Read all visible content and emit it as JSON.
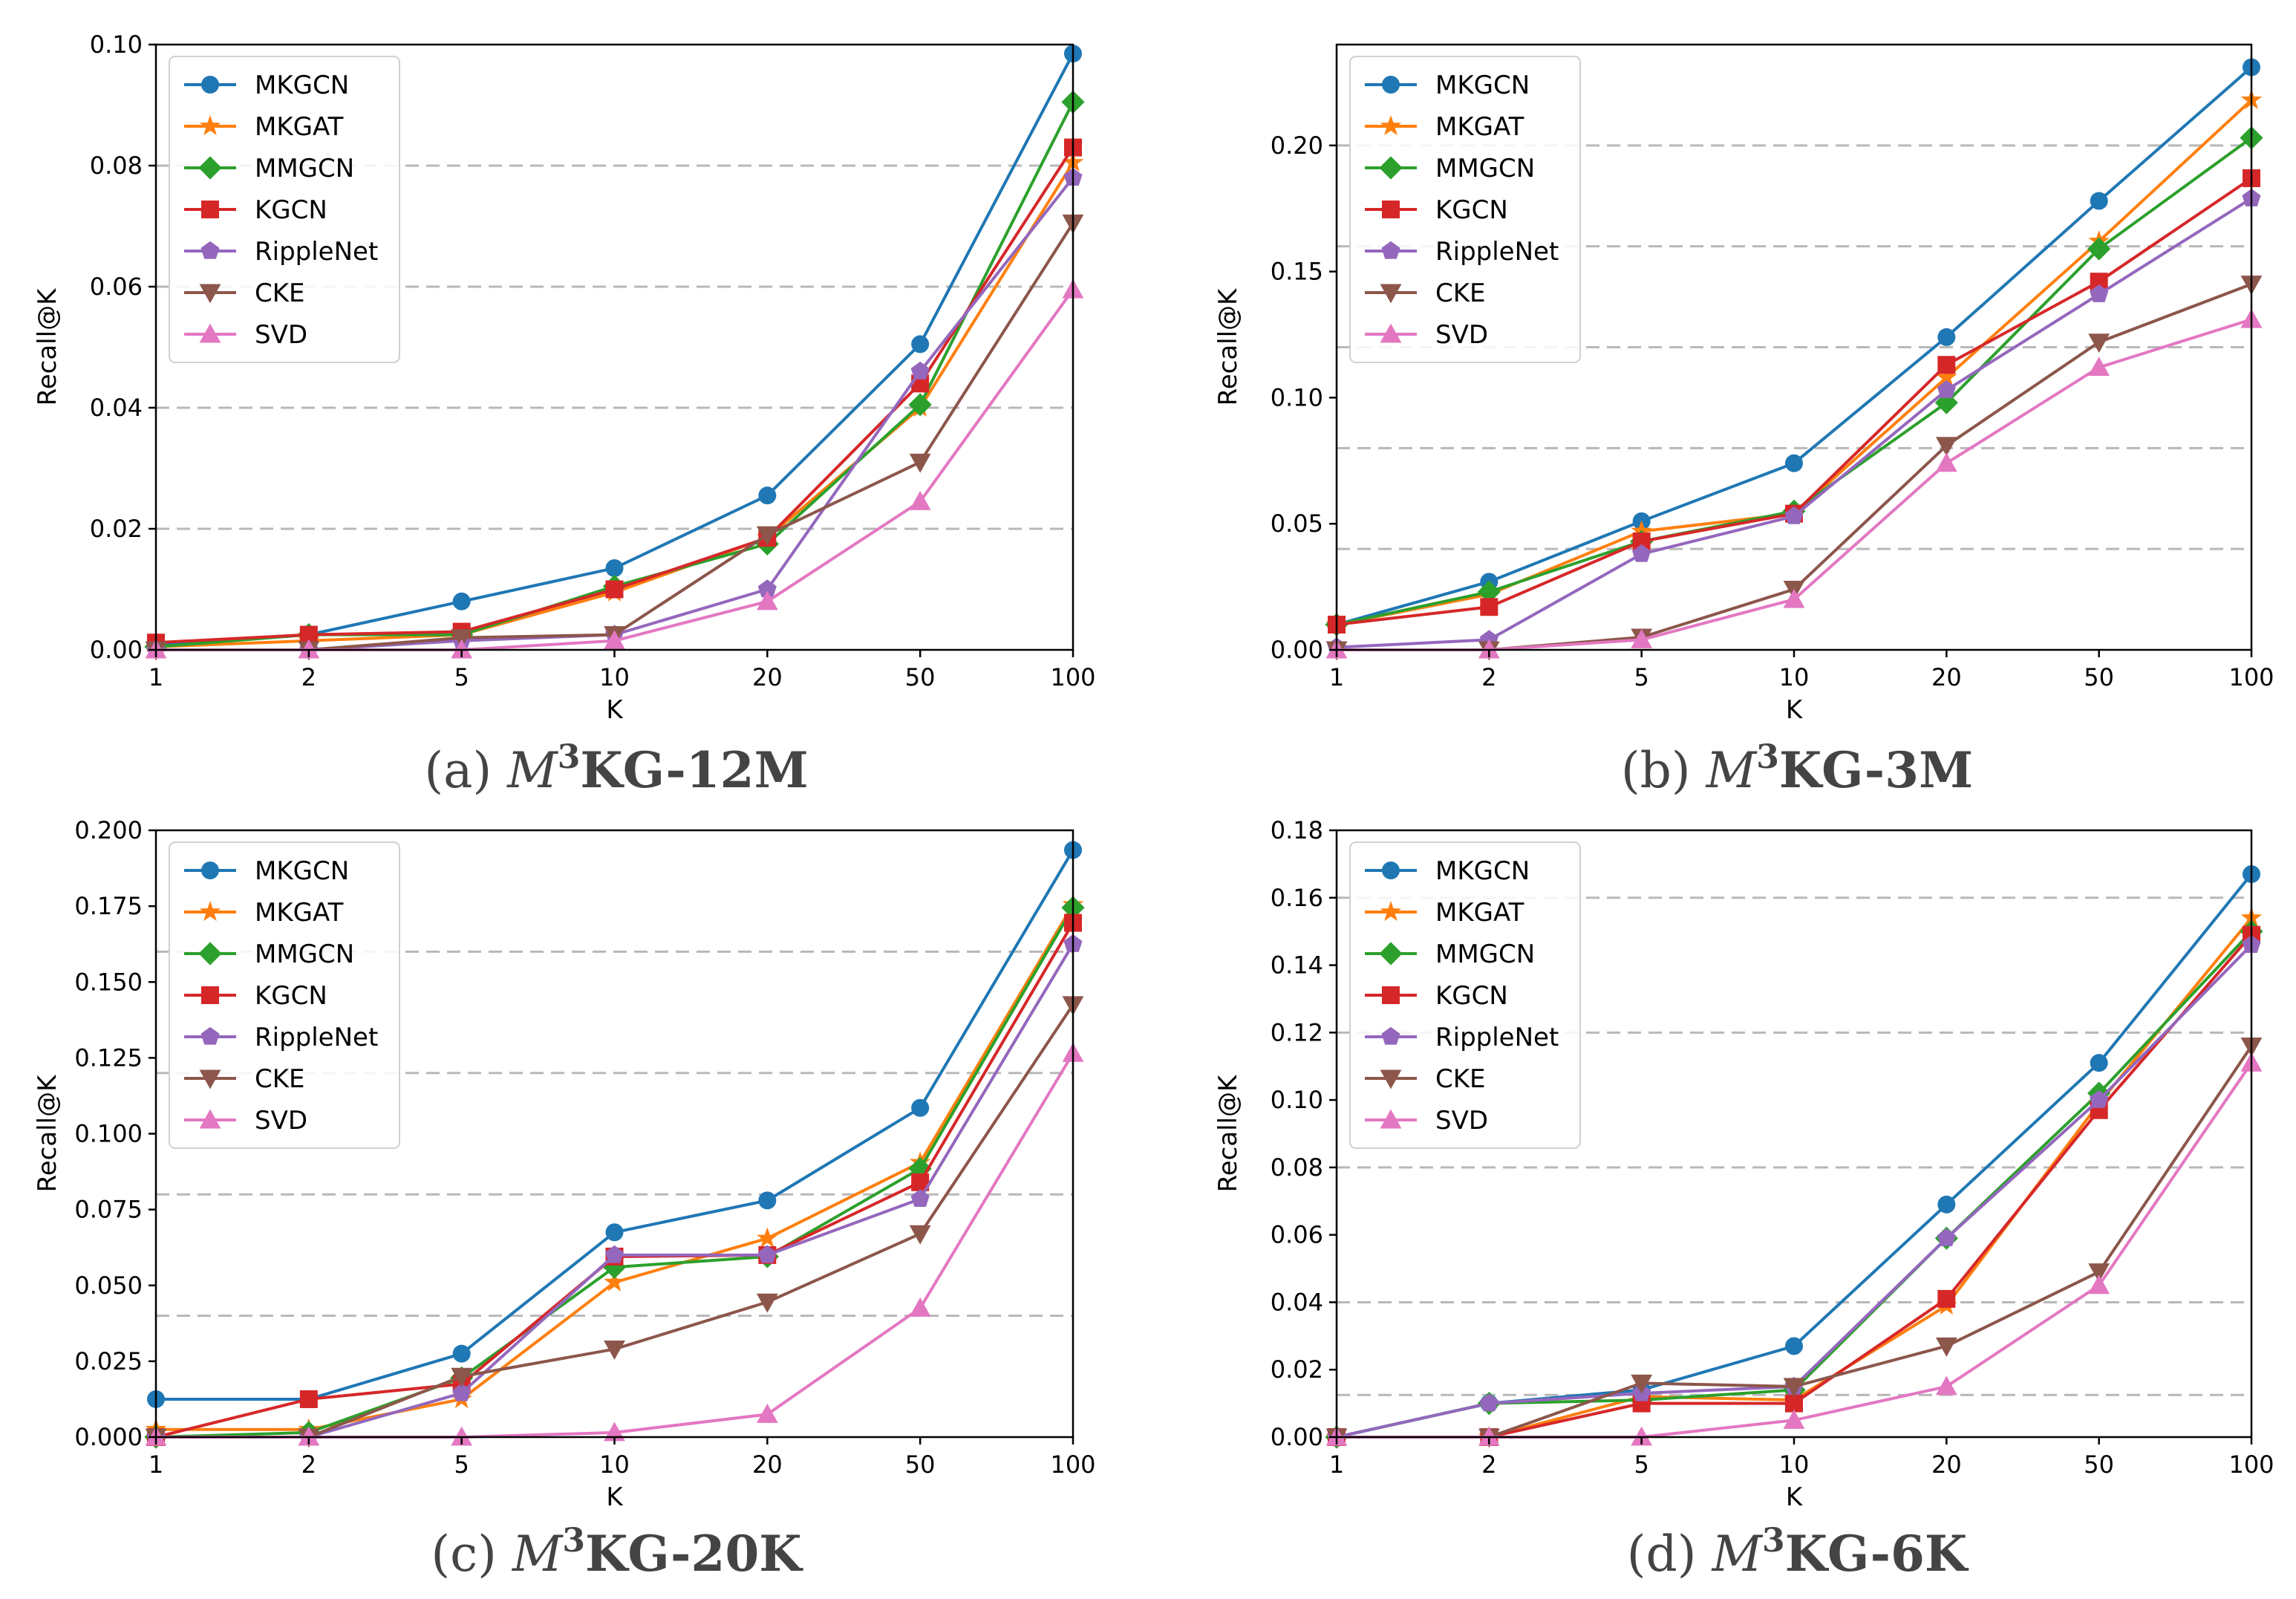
{
  "figure": {
    "colors": {
      "MKGCN": "#1f77b4",
      "MKGAT": "#ff7f0e",
      "MMGCN": "#2ca02c",
      "KGCN": "#d62728",
      "RippleNet": "#9467bd",
      "CKE": "#8c564b",
      "SVD": "#e377c2",
      "grid": "#b8b8b8"
    },
    "markers": {
      "MKGCN": "circle",
      "MKGAT": "star",
      "MMGCN": "diamond",
      "KGCN": "square",
      "RippleNet": "pentagon",
      "CKE": "triangle-down",
      "SVD": "triangle-up"
    }
  },
  "chart_data": [
    {
      "type": "line",
      "panel": "a",
      "caption_prefix": "(a)",
      "caption_math": "M",
      "caption_sup": "3",
      "caption_suffix": "KG-12M",
      "xlabel": "K",
      "ylabel": "Recall@K",
      "categories": [
        "1",
        "2",
        "5",
        "10",
        "20",
        "50",
        "100"
      ],
      "ylim": [
        0,
        0.1
      ],
      "yticks": [
        "0.00",
        "0.02",
        "0.04",
        "0.06",
        "0.08",
        "0.10"
      ],
      "ytick_values": [
        0,
        0.02,
        0.04,
        0.06,
        0.08,
        0.1
      ],
      "grid_values": [
        0.02,
        0.04,
        0.06,
        0.08
      ],
      "series": [
        {
          "name": "MKGCN",
          "values": [
            0.001,
            0.0025,
            0.008,
            0.0135,
            0.0255,
            0.0505,
            0.0985
          ]
        },
        {
          "name": "MKGAT",
          "values": [
            0.0005,
            0.0015,
            0.0025,
            0.0095,
            0.0185,
            0.04,
            0.0805
          ]
        },
        {
          "name": "MMGCN",
          "values": [
            0.0005,
            0.0025,
            0.0025,
            0.0105,
            0.0175,
            0.0405,
            0.0905
          ]
        },
        {
          "name": "KGCN",
          "values": [
            0.0012,
            0.0025,
            0.003,
            0.01,
            0.0185,
            0.044,
            0.083
          ]
        },
        {
          "name": "RippleNet",
          "values": [
            0.0,
            0.0,
            0.0015,
            0.0025,
            0.01,
            0.046,
            0.078
          ]
        },
        {
          "name": "CKE",
          "values": [
            0.0,
            0.0,
            0.002,
            0.0025,
            0.019,
            0.031,
            0.0705
          ]
        },
        {
          "name": "SVD",
          "values": [
            0.0,
            0.0,
            0.0,
            0.0015,
            0.008,
            0.0245,
            0.0595
          ]
        }
      ]
    },
    {
      "type": "line",
      "panel": "b",
      "caption_prefix": "(b)",
      "caption_math": "M",
      "caption_sup": "3",
      "caption_suffix": "KG-3M",
      "xlabel": "K",
      "ylabel": "Recall@K",
      "categories": [
        "1",
        "2",
        "5",
        "10",
        "20",
        "50",
        "100"
      ],
      "ylim": [
        0,
        0.24
      ],
      "yticks": [
        "0.00",
        "0.05",
        "0.10",
        "0.15",
        "0.20"
      ],
      "ytick_values": [
        0,
        0.05,
        0.1,
        0.15,
        0.2
      ],
      "grid_values": [
        0.04,
        0.08,
        0.12,
        0.16,
        0.2
      ],
      "series": [
        {
          "name": "MKGCN",
          "values": [
            0.01,
            0.027,
            0.051,
            0.074,
            0.124,
            0.178,
            0.231
          ]
        },
        {
          "name": "MKGAT",
          "values": [
            0.01,
            0.022,
            0.047,
            0.054,
            0.108,
            0.162,
            0.218
          ]
        },
        {
          "name": "MMGCN",
          "values": [
            0.01,
            0.023,
            0.043,
            0.055,
            0.098,
            0.159,
            0.203
          ]
        },
        {
          "name": "KGCN",
          "values": [
            0.01,
            0.017,
            0.043,
            0.054,
            0.113,
            0.146,
            0.187
          ]
        },
        {
          "name": "RippleNet",
          "values": [
            0.001,
            0.004,
            0.038,
            0.053,
            0.103,
            0.141,
            0.179
          ]
        },
        {
          "name": "CKE",
          "values": [
            0.0,
            0.0,
            0.005,
            0.024,
            0.081,
            0.122,
            0.145
          ]
        },
        {
          "name": "SVD",
          "values": [
            0.0,
            0.0,
            0.004,
            0.02,
            0.074,
            0.112,
            0.131
          ]
        }
      ]
    },
    {
      "type": "line",
      "panel": "c",
      "caption_prefix": "(c)",
      "caption_math": "M",
      "caption_sup": "3",
      "caption_suffix": "KG-20K",
      "xlabel": "K",
      "ylabel": "Recall@K",
      "categories": [
        "1",
        "2",
        "5",
        "10",
        "20",
        "50",
        "100"
      ],
      "ylim": [
        0,
        0.2
      ],
      "yticks": [
        "0.000",
        "0.025",
        "0.050",
        "0.075",
        "0.100",
        "0.125",
        "0.150",
        "0.175",
        "0.200"
      ],
      "ytick_values": [
        0,
        0.025,
        0.05,
        0.075,
        0.1,
        0.125,
        0.15,
        0.175,
        0.2
      ],
      "grid_values": [
        0.04,
        0.08,
        0.12,
        0.16
      ],
      "series": [
        {
          "name": "MKGCN",
          "values": [
            0.0125,
            0.0125,
            0.0275,
            0.0675,
            0.078,
            0.1085,
            0.1935
          ]
        },
        {
          "name": "MKGAT",
          "values": [
            0.0025,
            0.0025,
            0.0125,
            0.051,
            0.0655,
            0.0905,
            0.1755
          ]
        },
        {
          "name": "MMGCN",
          "values": [
            0.0,
            0.0015,
            0.0195,
            0.056,
            0.0595,
            0.0885,
            0.1745
          ]
        },
        {
          "name": "KGCN",
          "values": [
            0.0,
            0.0125,
            0.0175,
            0.0595,
            0.06,
            0.084,
            0.1695
          ]
        },
        {
          "name": "RippleNet",
          "values": [
            0.0,
            0.0,
            0.0145,
            0.06,
            0.06,
            0.0785,
            0.1625
          ]
        },
        {
          "name": "CKE",
          "values": [
            0.0,
            0.0,
            0.02,
            0.029,
            0.0445,
            0.067,
            0.1425
          ]
        },
        {
          "name": "SVD",
          "values": [
            0.0,
            0.0,
            0.0,
            0.0015,
            0.0075,
            0.0425,
            0.1265
          ]
        }
      ]
    },
    {
      "type": "line",
      "panel": "d",
      "caption_prefix": "(d)",
      "caption_math": "M",
      "caption_sup": "3",
      "caption_suffix": "KG-6K",
      "xlabel": "K",
      "ylabel": "Recall@K",
      "categories": [
        "1",
        "2",
        "5",
        "10",
        "20",
        "50",
        "100"
      ],
      "ylim": [
        0,
        0.18
      ],
      "yticks": [
        "0.00",
        "0.02",
        "0.04",
        "0.06",
        "0.08",
        "0.10",
        "0.12",
        "0.14",
        "0.16",
        "0.18"
      ],
      "ytick_values": [
        0,
        0.02,
        0.04,
        0.06,
        0.08,
        0.1,
        0.12,
        0.14,
        0.16,
        0.18
      ],
      "grid_values": [
        0.0125,
        0.04,
        0.08,
        0.12,
        0.16
      ],
      "series": [
        {
          "name": "MKGCN",
          "values": [
            0.0,
            0.01,
            0.014,
            0.027,
            0.069,
            0.111,
            0.167
          ]
        },
        {
          "name": "MKGAT",
          "values": [
            0.0,
            0.0,
            0.012,
            0.011,
            0.039,
            0.099,
            0.154
          ]
        },
        {
          "name": "MMGCN",
          "values": [
            0.0,
            0.01,
            0.011,
            0.014,
            0.059,
            0.102,
            0.15
          ]
        },
        {
          "name": "KGCN",
          "values": [
            0.0,
            0.0,
            0.01,
            0.01,
            0.041,
            0.097,
            0.149
          ]
        },
        {
          "name": "RippleNet",
          "values": [
            0.0,
            0.01,
            0.013,
            0.015,
            0.059,
            0.1,
            0.146
          ]
        },
        {
          "name": "CKE",
          "values": [
            0.0,
            0.0,
            0.016,
            0.015,
            0.027,
            0.049,
            0.116
          ]
        },
        {
          "name": "SVD",
          "values": [
            0.0,
            0.0,
            0.0,
            0.005,
            0.015,
            0.045,
            0.111
          ]
        }
      ]
    }
  ]
}
